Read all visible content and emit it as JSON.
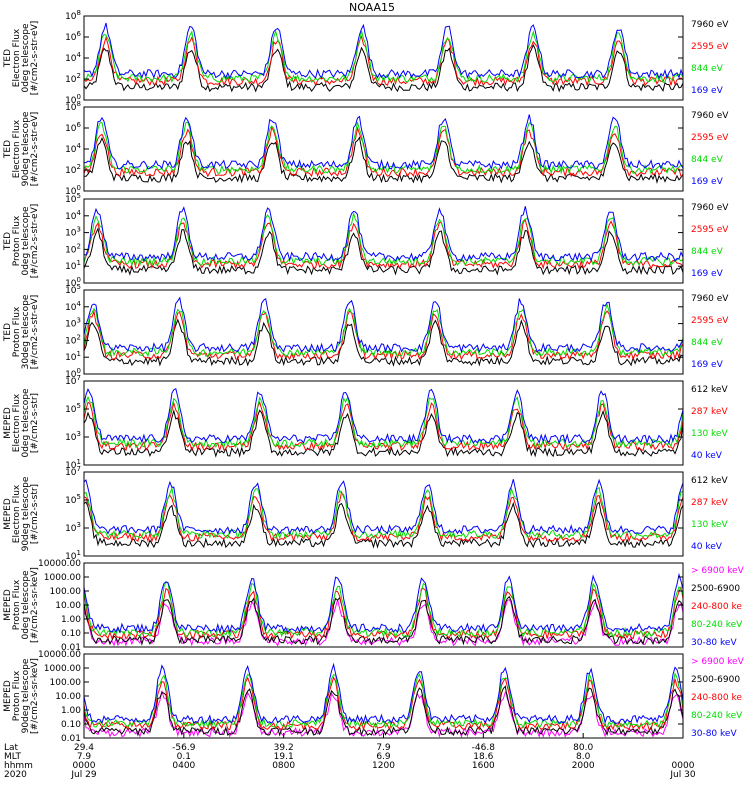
{
  "title": "NOAA15",
  "colors": {
    "black": "#000000",
    "blue": "#0000ff",
    "red": "#ff0000",
    "green": "#00dd00",
    "magenta": "#ff00ff"
  },
  "chart_data": {
    "type": "line",
    "title": "NOAA15",
    "x_range": [
      "2020-07-29 00:00",
      "2020-07-30 00:00"
    ],
    "x_ticks": {
      "rows": [
        "Lat",
        "MLT",
        "hhmm",
        "2020"
      ],
      "columns": [
        {
          "Lat": "29.4",
          "MLT": "7.9",
          "hhmm": "0000",
          "2020": "Jul 29"
        },
        {
          "Lat": "-56.9",
          "MLT": "0.1",
          "hhmm": "0400",
          "2020": ""
        },
        {
          "Lat": "39.2",
          "MLT": "19.1",
          "hhmm": "0800",
          "2020": ""
        },
        {
          "Lat": "7.9",
          "MLT": "6.9",
          "hhmm": "1200",
          "2020": ""
        },
        {
          "Lat": "-46.8",
          "MLT": "18.6",
          "hhmm": "1600",
          "2020": ""
        },
        {
          "Lat": "80.0",
          "MLT": "8.0",
          "hhmm": "2000",
          "2020": ""
        },
        {
          "Lat": "",
          "MLT": "",
          "hhmm": "0000",
          "2020": "Jul 30"
        }
      ]
    },
    "panels": [
      {
        "ylabel": [
          "TED",
          "Electron Flux",
          "0deg telescope",
          "[#/cm2-s-str-eV]"
        ],
        "ylog": [
          0,
          6
        ],
        "yticks": [
          "10^0",
          "10^2",
          "10^4",
          "10^6",
          "10^8"
        ],
        "series": [
          {
            "name": "7960 eV",
            "color": "#000000"
          },
          {
            "name": "2595 eV",
            "color": "#ff0000"
          },
          {
            "name": "844 eV",
            "color": "#00dd00"
          },
          {
            "name": "169 eV",
            "color": "#0000ff"
          }
        ]
      },
      {
        "ylabel": [
          "TED",
          "Electron Flux",
          "90deg telescope",
          "[#/cm2-s-str-eV]"
        ],
        "ylog": [
          0,
          6
        ],
        "yticks": [
          "10^0",
          "10^2",
          "10^4",
          "10^6",
          "10^8"
        ],
        "series": [
          {
            "name": "7960 eV",
            "color": "#000000"
          },
          {
            "name": "2595 eV",
            "color": "#ff0000"
          },
          {
            "name": "844 eV",
            "color": "#00dd00"
          },
          {
            "name": "169 eV",
            "color": "#0000ff"
          }
        ]
      },
      {
        "ylabel": [
          "TED",
          "Proton Flux",
          "0deg telescope",
          "[#/cm2-s-str-eV]"
        ],
        "ylog": [
          0,
          5
        ],
        "yticks": [
          "10^0",
          "10^1",
          "10^2",
          "10^3",
          "10^4",
          "10^5"
        ],
        "series": [
          {
            "name": "7960 eV",
            "color": "#000000"
          },
          {
            "name": "2595 eV",
            "color": "#ff0000"
          },
          {
            "name": "844 eV",
            "color": "#00dd00"
          },
          {
            "name": "169 eV",
            "color": "#0000ff"
          }
        ]
      },
      {
        "ylabel": [
          "TED",
          "Proton Flux",
          "30deg telescope",
          "[#/cm2-s-str-eV]"
        ],
        "ylog": [
          0,
          5
        ],
        "yticks": [
          "10^0",
          "10^1",
          "10^2",
          "10^3",
          "10^4",
          "10^5"
        ],
        "series": [
          {
            "name": "7960 eV",
            "color": "#000000"
          },
          {
            "name": "2595 eV",
            "color": "#ff0000"
          },
          {
            "name": "844 eV",
            "color": "#00dd00"
          },
          {
            "name": "169 eV",
            "color": "#0000ff"
          }
        ]
      },
      {
        "ylabel": [
          "MEPED",
          "Electron Flux",
          "0deg telescope",
          "[#/cm2-s-str]"
        ],
        "ylog": [
          1,
          7
        ],
        "yticks": [
          "10^1",
          "10^3",
          "10^5",
          "10^7"
        ],
        "series": [
          {
            "name": "612 keV",
            "color": "#000000"
          },
          {
            "name": "287 keV",
            "color": "#ff0000"
          },
          {
            "name": "130 keV",
            "color": "#00dd00"
          },
          {
            "name": "40 keV",
            "color": "#0000ff"
          }
        ]
      },
      {
        "ylabel": [
          "MEPED",
          "Electron Flux",
          "90deg telescope",
          "[#/cm2-s-str]"
        ],
        "ylog": [
          1,
          7
        ],
        "yticks": [
          "10^1",
          "10^3",
          "10^5",
          "10^7"
        ],
        "series": [
          {
            "name": "612 keV",
            "color": "#000000"
          },
          {
            "name": "287 keV",
            "color": "#ff0000"
          },
          {
            "name": "130 keV",
            "color": "#00dd00"
          },
          {
            "name": "40 keV",
            "color": "#0000ff"
          }
        ]
      },
      {
        "ylabel": [
          "MEPED",
          "Proton Flux",
          "0deg telescope",
          "[#/cm2-s-sr-keV]"
        ],
        "ylog": [
          -2,
          4
        ],
        "yticks": [
          "0.01",
          "0.10",
          "1.00",
          "10.00",
          "100.00",
          "1000.00",
          "10000.00"
        ],
        "series": [
          {
            "name": "> 6900 keV",
            "color": "#ff00ff"
          },
          {
            "name": "2500-6900",
            "color": "#000000"
          },
          {
            "name": "240-800 ke",
            "color": "#ff0000"
          },
          {
            "name": "80-240 keV",
            "color": "#00dd00"
          },
          {
            "name": "30-80 keV",
            "color": "#0000ff"
          }
        ]
      },
      {
        "ylabel": [
          "MEPED",
          "Proton Flux",
          "90deg telescope",
          "[#/cm2-s-sr-keV]"
        ],
        "ylog": [
          -2,
          4
        ],
        "yticks": [
          "0.01",
          "0.10",
          "1.00",
          "10.00",
          "100.00",
          "1000.00",
          "10000.00"
        ],
        "series": [
          {
            "name": "> 6900 keV",
            "color": "#ff00ff"
          },
          {
            "name": "2500-6900",
            "color": "#000000"
          },
          {
            "name": "240-800 ke",
            "color": "#ff0000"
          },
          {
            "name": "80-240 keV",
            "color": "#00dd00"
          },
          {
            "name": "30-80 keV",
            "color": "#0000ff"
          }
        ]
      }
    ]
  }
}
